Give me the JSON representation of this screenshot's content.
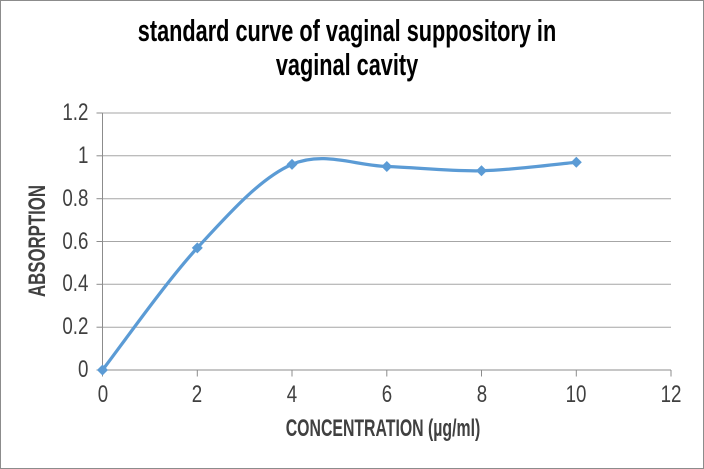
{
  "chart_data": {
    "type": "line",
    "title": "standard curve of vaginal suppository in vaginal cavity",
    "title_lines": [
      "standard curve of vaginal suppository in",
      "vaginal cavity"
    ],
    "xlabel": "CONCENTRATION (µg/ml)",
    "ylabel": "ABSORPTION",
    "x": [
      0,
      2,
      4,
      6,
      8,
      10
    ],
    "y": [
      0,
      0.57,
      0.96,
      0.95,
      0.93,
      0.97
    ],
    "xlim": [
      0,
      12
    ],
    "ylim": [
      0,
      1.2
    ],
    "x_ticks": [
      0,
      2,
      4,
      6,
      8,
      10,
      12
    ],
    "x_tick_labels": [
      "0",
      "2",
      "4",
      "6",
      "8",
      "10",
      "12"
    ],
    "y_ticks": [
      0,
      0.2,
      0.4,
      0.6,
      0.8,
      1,
      1.2
    ],
    "y_tick_labels": [
      "0",
      "0.2",
      "0.4",
      "0.6",
      "0.8",
      "1",
      "1.2"
    ],
    "grid": "horizontal",
    "legend": "none",
    "smooth": true,
    "marker": "diamond",
    "line_color": "#5B9BD5",
    "grid_color": "#A6A6A6",
    "axis_color": "#8C8C8C"
  }
}
